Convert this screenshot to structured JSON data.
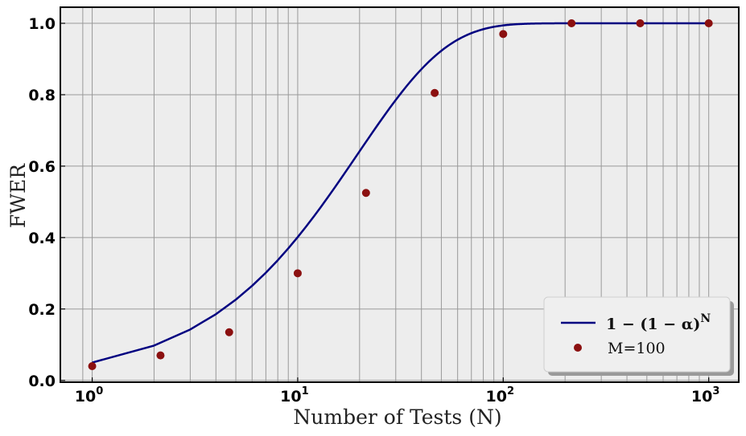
{
  "chart_data": {
    "type": "line",
    "xscale": "log",
    "xlim": [
      0.7,
      1400
    ],
    "ylim": [
      -0.005,
      1.045
    ],
    "xlabel": "Number of Tests (N)",
    "ylabel": "FWER",
    "grid": true,
    "legend_position": "bottom-right",
    "xticks": [
      {
        "base": "10",
        "exp": "0",
        "value": 1
      },
      {
        "base": "10",
        "exp": "1",
        "value": 10
      },
      {
        "base": "10",
        "exp": "2",
        "value": 100
      },
      {
        "base": "10",
        "exp": "3",
        "value": 1000
      }
    ],
    "yticks": [
      "0.0",
      "0.2",
      "0.4",
      "0.6",
      "0.8",
      "1.0"
    ],
    "series": [
      {
        "kind": "line",
        "legend_main": "1 − (1 − α)",
        "legend_sup": "N",
        "color": "#000080",
        "alpha": 0.05,
        "x_range": [
          1,
          1000
        ]
      },
      {
        "kind": "scatter",
        "name": "M=100",
        "color": "#8b1010",
        "x": [
          1,
          2.15,
          4.64,
          10,
          21.5,
          46.4,
          100,
          215,
          464,
          1000
        ],
        "y": [
          0.04,
          0.07,
          0.135,
          0.3,
          0.525,
          0.805,
          0.97,
          1.0,
          1.0,
          1.0
        ]
      }
    ]
  },
  "colors": {
    "plot_background": "#ededed",
    "grid": "#999999",
    "frame": "#000000"
  }
}
